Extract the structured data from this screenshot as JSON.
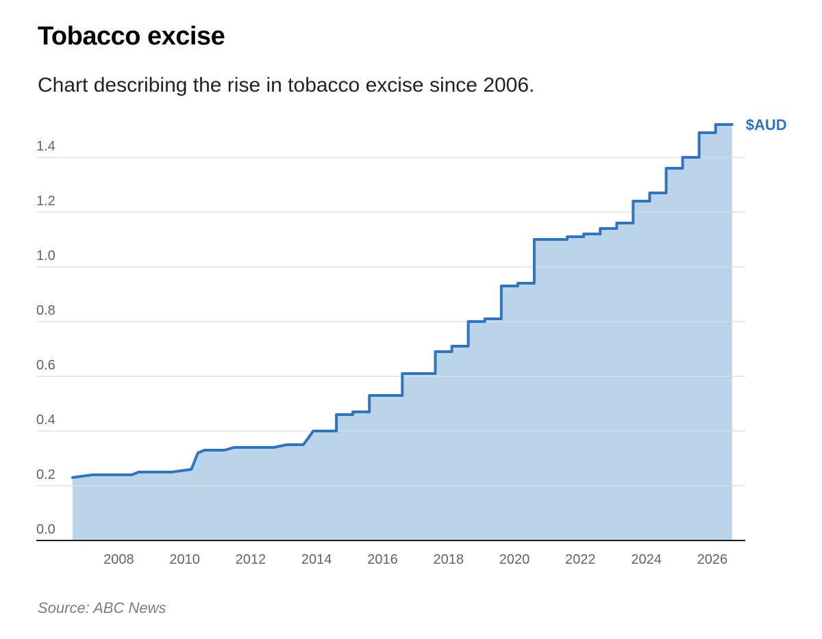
{
  "title": "Tobacco excise",
  "subtitle": "Chart describing the rise in tobacco excise since 2006.",
  "source": "Source: ABC News",
  "colors": {
    "line": "#2f74c0",
    "area": "#bcd4ea",
    "grid": "#d4d8dd",
    "axis": "#1a1a1a",
    "ticks": "#5d6470"
  },
  "chart_data": {
    "type": "area",
    "series_label": "$AUD",
    "xlim": [
      2005.5,
      2027.0
    ],
    "ylim": [
      0.0,
      1.52
    ],
    "y_ticks": [
      "0.0",
      "0.2",
      "0.4",
      "0.6",
      "0.8",
      "1.0",
      "1.2",
      "1.4"
    ],
    "x_ticks": [
      "2008",
      "2010",
      "2012",
      "2014",
      "2016",
      "2018",
      "2020",
      "2022",
      "2024",
      "2026"
    ],
    "grid": true,
    "x": [
      2006.6,
      2007.2,
      2008.4,
      2008.6,
      2009.6,
      2010.2,
      2010.4,
      2010.6,
      2011.2,
      2011.5,
      2012.7,
      2013.1,
      2013.6,
      2013.9,
      2014.6,
      2014.6,
      2015.1,
      2015.1,
      2015.6,
      2015.6,
      2016.6,
      2016.6,
      2017.6,
      2017.6,
      2018.1,
      2018.1,
      2018.6,
      2018.6,
      2019.1,
      2019.1,
      2019.6,
      2019.6,
      2020.1,
      2020.1,
      2020.6,
      2020.6,
      2021.6,
      2021.6,
      2022.1,
      2022.1,
      2022.6,
      2022.6,
      2023.1,
      2023.1,
      2023.6,
      2023.6,
      2024.1,
      2024.1,
      2024.6,
      2024.6,
      2025.1,
      2025.1,
      2025.6,
      2025.6,
      2026.1,
      2026.1,
      2026.6
    ],
    "y": [
      0.23,
      0.24,
      0.24,
      0.25,
      0.25,
      0.26,
      0.32,
      0.33,
      0.33,
      0.34,
      0.34,
      0.35,
      0.35,
      0.4,
      0.4,
      0.46,
      0.46,
      0.47,
      0.47,
      0.53,
      0.53,
      0.61,
      0.61,
      0.69,
      0.69,
      0.71,
      0.71,
      0.8,
      0.8,
      0.81,
      0.81,
      0.93,
      0.93,
      0.94,
      0.94,
      1.1,
      1.1,
      1.11,
      1.11,
      1.12,
      1.12,
      1.14,
      1.14,
      1.16,
      1.16,
      1.24,
      1.24,
      1.27,
      1.27,
      1.36,
      1.36,
      1.4,
      1.4,
      1.49,
      1.49,
      1.52,
      1.52
    ]
  }
}
